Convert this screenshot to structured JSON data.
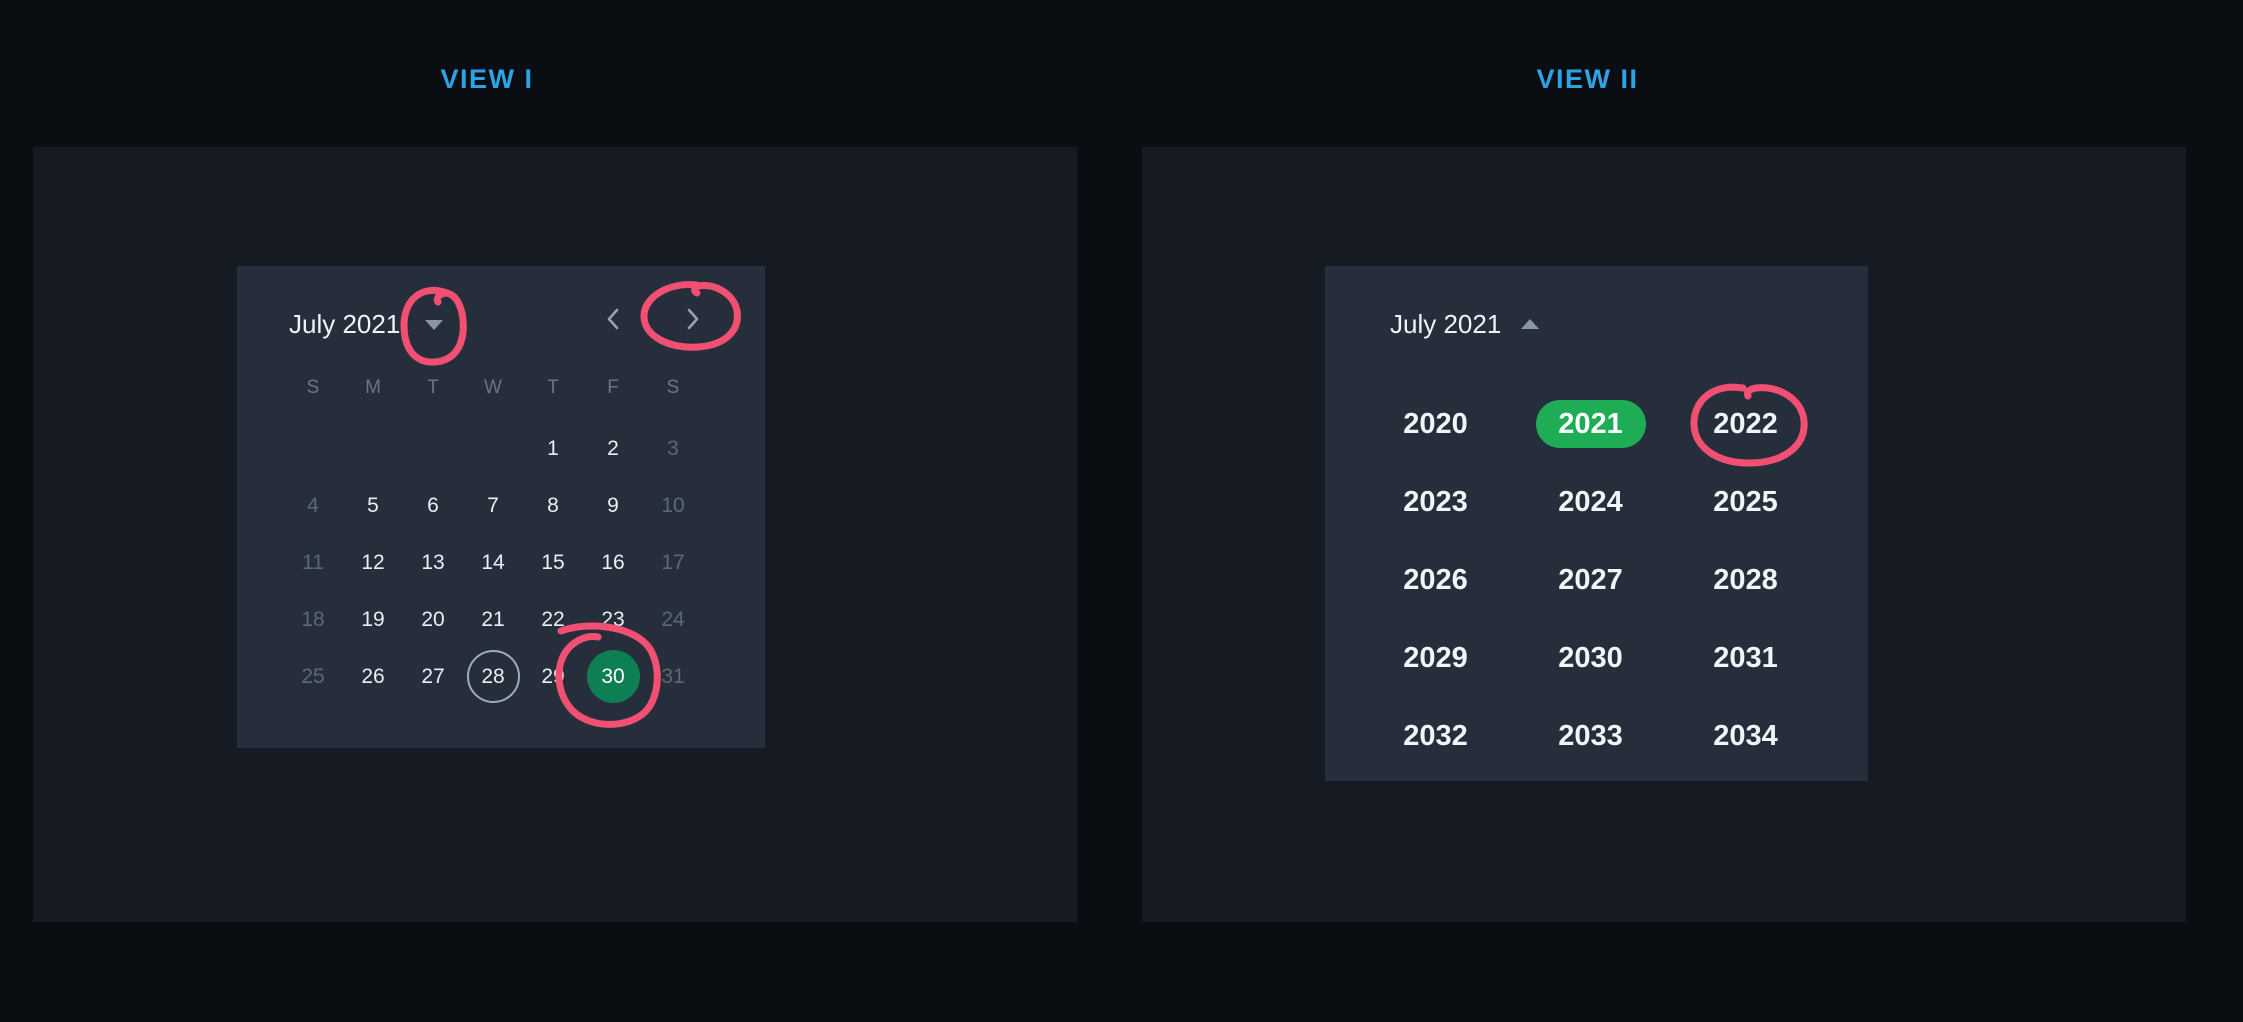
{
  "colors": {
    "accent_blue": "#2ea2e2",
    "selected_day_green": "#0e7f55",
    "selected_year_green": "#1ead55",
    "annotation_pink": "#f15073"
  },
  "view1": {
    "title": "VIEW I",
    "calendar": {
      "month_label": "July 2021",
      "dropdown_icon": "caret-down",
      "prev_icon": "chevron-left",
      "next_icon": "chevron-right",
      "day_headers": [
        "S",
        "M",
        "T",
        "W",
        "T",
        "F",
        "S"
      ],
      "weeks": [
        [
          "",
          "",
          "",
          "",
          "1",
          "2",
          "3"
        ],
        [
          "4",
          "5",
          "6",
          "7",
          "8",
          "9",
          "10"
        ],
        [
          "11",
          "12",
          "13",
          "14",
          "15",
          "16",
          "17"
        ],
        [
          "18",
          "19",
          "20",
          "21",
          "22",
          "23",
          "24"
        ],
        [
          "25",
          "26",
          "27",
          "28",
          "29",
          "30",
          "31"
        ]
      ],
      "muted_days": [
        "3",
        "4",
        "10",
        "11",
        "17",
        "18",
        "24",
        "25",
        "31"
      ],
      "today_day": "28",
      "selected_day": "30"
    }
  },
  "view2": {
    "title": "VIEW II",
    "calendar": {
      "month_label": "July 2021",
      "collapse_icon": "caret-up",
      "years": [
        "2020",
        "2021",
        "2022",
        "2023",
        "2024",
        "2025",
        "2026",
        "2027",
        "2028",
        "2029",
        "2030",
        "2031",
        "2032",
        "2033",
        "2034"
      ],
      "selected_year": "2021"
    }
  },
  "annotations": {
    "style": "hand-drawn pink circles",
    "items": [
      "month-dropdown-caret",
      "next-month-button",
      "day-30",
      "year-2022"
    ]
  }
}
